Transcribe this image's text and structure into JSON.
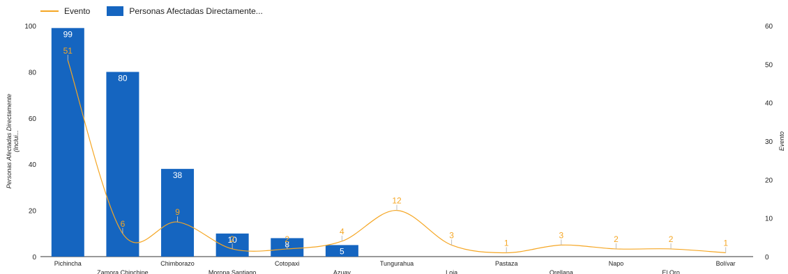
{
  "chart_data": {
    "type": "bar",
    "categories": [
      "Pichincha",
      "Zamora Chinchipe",
      "Chimborazo",
      "Morona Santiago",
      "Cotopaxi",
      "Azuay",
      "Tungurahua",
      "Loja",
      "Pastaza",
      "Orellana",
      "Napo",
      "El Oro",
      "Bolívar"
    ],
    "series": [
      {
        "name": "Personas Afectadas Directamente...",
        "type": "bar",
        "axis": "left",
        "color": "#1565c0",
        "values": [
          99,
          80,
          38,
          10,
          8,
          5,
          null,
          null,
          null,
          null,
          null,
          null,
          null
        ],
        "labels": [
          "99",
          "80",
          "38",
          "10",
          "8",
          "5",
          "",
          "",
          "",
          "",
          "",
          "",
          ""
        ]
      },
      {
        "name": "Evento",
        "type": "line",
        "axis": "right",
        "color": "#f5a623",
        "values": [
          51,
          6,
          9,
          2,
          2,
          4,
          12,
          3,
          1,
          3,
          2,
          2,
          1
        ],
        "labels": [
          "51",
          "6",
          "9",
          "2",
          "2",
          "4",
          "12",
          "3",
          "1",
          "3",
          "2",
          "2",
          "1"
        ]
      }
    ],
    "ylabel": "Personas Afectadas Directamente (Inclui...",
    "ylabel_lines": [
      "Personas Afectadas Directamente",
      "(Inclui..."
    ],
    "y2label": "Evento",
    "ylim": [
      0,
      100
    ],
    "yticks": [
      "0",
      "20",
      "40",
      "60",
      "80",
      "100"
    ],
    "y2lim": [
      0,
      60
    ],
    "y2ticks": [
      "0",
      "10",
      "20",
      "30",
      "40",
      "50",
      "60"
    ],
    "legend_position": "top-left",
    "grid": false
  }
}
